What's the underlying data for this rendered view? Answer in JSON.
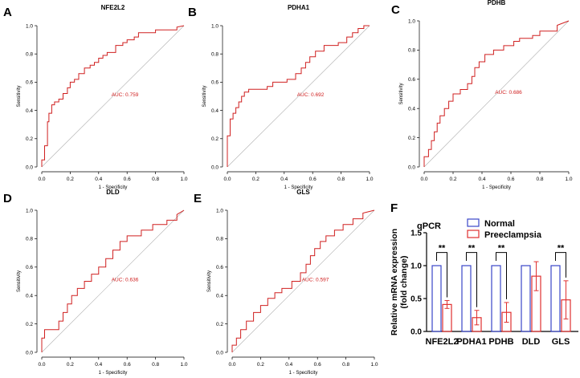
{
  "figure": {
    "roc_panels": [
      {
        "panel": "A",
        "gene": "NFE2L2",
        "auc_label": "AUC: 0.759"
      },
      {
        "panel": "B",
        "gene": "PDHA1",
        "auc_label": "AUC: 0.692"
      },
      {
        "panel": "C",
        "gene": "PDHB",
        "auc_label": "AUC: 0.686"
      },
      {
        "panel": "D",
        "gene": "DLD",
        "auc_label": "AUC: 0.636"
      },
      {
        "panel": "E",
        "gene": "GLS",
        "auc_label": "AUC: 0.597"
      }
    ],
    "bar_panel": {
      "panel": "F",
      "title": "qPCR"
    }
  },
  "colors": {
    "roc_curve": "#d02020",
    "diagonal": "#b0b0b0",
    "normal": "#3a45c8",
    "preeclampsia": "#e03030"
  },
  "chart_data": [
    {
      "type": "line",
      "panel": "A",
      "title": "NFE2L2",
      "xlabel": "1 - Specificity",
      "ylabel": "Sensitivity",
      "xlim": [
        0,
        1
      ],
      "ylim": [
        0,
        1
      ],
      "x_ticks": [
        "0.0",
        "0.2",
        "0.4",
        "0.6",
        "0.8",
        "1.0"
      ],
      "y_ticks": [
        "0.0",
        "0.2",
        "0.4",
        "0.6",
        "0.8",
        "1.0"
      ],
      "annotation": "AUC: 0.759",
      "series": [
        {
          "name": "ROC",
          "x": [
            0,
            0,
            0.02,
            0.02,
            0.04,
            0.04,
            0.05,
            0.05,
            0.07,
            0.07,
            0.09,
            0.09,
            0.12,
            0.12,
            0.15,
            0.15,
            0.18,
            0.18,
            0.2,
            0.2,
            0.23,
            0.23,
            0.26,
            0.26,
            0.3,
            0.3,
            0.34,
            0.34,
            0.37,
            0.37,
            0.4,
            0.4,
            0.43,
            0.43,
            0.46,
            0.46,
            0.52,
            0.52,
            0.57,
            0.57,
            0.6,
            0.6,
            0.65,
            0.65,
            0.68,
            0.68,
            0.8,
            0.8,
            0.95,
            0.95,
            1.0
          ],
          "y": [
            0,
            0.05,
            0.05,
            0.15,
            0.15,
            0.32,
            0.32,
            0.38,
            0.38,
            0.44,
            0.44,
            0.46,
            0.46,
            0.48,
            0.48,
            0.52,
            0.52,
            0.56,
            0.56,
            0.6,
            0.6,
            0.62,
            0.62,
            0.66,
            0.66,
            0.7,
            0.7,
            0.72,
            0.72,
            0.74,
            0.74,
            0.77,
            0.77,
            0.79,
            0.79,
            0.81,
            0.81,
            0.86,
            0.86,
            0.88,
            0.88,
            0.9,
            0.9,
            0.92,
            0.92,
            0.95,
            0.95,
            0.97,
            0.97,
            0.99,
            1.0
          ]
        },
        {
          "name": "Reference",
          "x": [
            0,
            1
          ],
          "y": [
            0,
            1
          ]
        }
      ]
    },
    {
      "type": "line",
      "panel": "B",
      "title": "PDHA1",
      "xlabel": "1 - Specificity",
      "ylabel": "Sensitivity",
      "xlim": [
        0,
        1
      ],
      "ylim": [
        0,
        1
      ],
      "x_ticks": [
        "0.0",
        "0.2",
        "0.4",
        "0.6",
        "0.8",
        "1.0"
      ],
      "y_ticks": [
        "0.0",
        "0.2",
        "0.4",
        "0.6",
        "0.8",
        "1.0"
      ],
      "annotation": "AUC: 0.692",
      "series": [
        {
          "name": "ROC",
          "x": [
            0,
            0,
            0.02,
            0.02,
            0.04,
            0.04,
            0.06,
            0.06,
            0.08,
            0.08,
            0.1,
            0.1,
            0.12,
            0.12,
            0.15,
            0.15,
            0.28,
            0.28,
            0.32,
            0.32,
            0.42,
            0.42,
            0.48,
            0.48,
            0.52,
            0.52,
            0.55,
            0.55,
            0.58,
            0.58,
            0.62,
            0.62,
            0.68,
            0.68,
            0.78,
            0.78,
            0.84,
            0.84,
            0.88,
            0.88,
            0.92,
            0.92,
            0.96,
            0.96,
            1.0
          ],
          "y": [
            0,
            0.22,
            0.22,
            0.34,
            0.34,
            0.38,
            0.38,
            0.42,
            0.42,
            0.46,
            0.46,
            0.5,
            0.5,
            0.53,
            0.53,
            0.55,
            0.55,
            0.57,
            0.57,
            0.6,
            0.6,
            0.62,
            0.62,
            0.66,
            0.66,
            0.7,
            0.7,
            0.74,
            0.74,
            0.78,
            0.78,
            0.82,
            0.82,
            0.86,
            0.86,
            0.88,
            0.88,
            0.92,
            0.92,
            0.95,
            0.95,
            0.98,
            0.98,
            1.0,
            1.0
          ]
        },
        {
          "name": "Reference",
          "x": [
            0,
            1
          ],
          "y": [
            0,
            1
          ]
        }
      ]
    },
    {
      "type": "line",
      "panel": "C",
      "title": "PDHB",
      "xlabel": "1 - Specificity",
      "ylabel": "Sensitivity",
      "xlim": [
        0,
        1
      ],
      "ylim": [
        0,
        1
      ],
      "x_ticks": [
        "0.0",
        "0.2",
        "0.4",
        "0.6",
        "0.8",
        "1.0"
      ],
      "y_ticks": [
        "0.0",
        "0.2",
        "0.4",
        "0.6",
        "0.8",
        "1.0"
      ],
      "annotation": "AUC: 0.686",
      "series": [
        {
          "name": "ROC",
          "x": [
            0,
            0,
            0.03,
            0.03,
            0.05,
            0.05,
            0.07,
            0.07,
            0.09,
            0.09,
            0.11,
            0.11,
            0.14,
            0.14,
            0.17,
            0.17,
            0.2,
            0.2,
            0.25,
            0.25,
            0.3,
            0.3,
            0.33,
            0.33,
            0.35,
            0.35,
            0.38,
            0.38,
            0.42,
            0.42,
            0.48,
            0.48,
            0.55,
            0.55,
            0.62,
            0.62,
            0.66,
            0.66,
            0.75,
            0.75,
            0.8,
            0.8,
            0.92,
            0.92,
            1.0
          ],
          "y": [
            0,
            0.07,
            0.07,
            0.12,
            0.12,
            0.18,
            0.18,
            0.24,
            0.24,
            0.3,
            0.3,
            0.35,
            0.35,
            0.4,
            0.4,
            0.45,
            0.45,
            0.5,
            0.5,
            0.53,
            0.53,
            0.57,
            0.57,
            0.62,
            0.62,
            0.68,
            0.68,
            0.72,
            0.72,
            0.77,
            0.77,
            0.8,
            0.8,
            0.83,
            0.83,
            0.86,
            0.86,
            0.88,
            0.88,
            0.9,
            0.9,
            0.93,
            0.93,
            0.97,
            1.0
          ]
        },
        {
          "name": "Reference",
          "x": [
            0,
            1
          ],
          "y": [
            0,
            1
          ]
        }
      ]
    },
    {
      "type": "line",
      "panel": "D",
      "title": "DLD",
      "xlabel": "1 - Specificity",
      "ylabel": "Sensitivity",
      "xlim": [
        0,
        1
      ],
      "ylim": [
        0,
        1
      ],
      "x_ticks": [
        "0.0",
        "0.2",
        "0.4",
        "0.6",
        "0.8",
        "1.0"
      ],
      "y_ticks": [
        "0.0",
        "0.2",
        "0.4",
        "0.6",
        "0.8",
        "1.0"
      ],
      "annotation": "AUC: 0.636",
      "series": [
        {
          "name": "ROC",
          "x": [
            0,
            0,
            0.02,
            0.02,
            0.12,
            0.12,
            0.15,
            0.15,
            0.18,
            0.18,
            0.21,
            0.21,
            0.25,
            0.25,
            0.3,
            0.3,
            0.35,
            0.35,
            0.4,
            0.4,
            0.45,
            0.45,
            0.5,
            0.5,
            0.55,
            0.55,
            0.6,
            0.6,
            0.7,
            0.7,
            0.78,
            0.78,
            0.88,
            0.88,
            0.95,
            0.95,
            1.0
          ],
          "y": [
            0,
            0.1,
            0.1,
            0.16,
            0.16,
            0.22,
            0.22,
            0.28,
            0.28,
            0.34,
            0.34,
            0.4,
            0.4,
            0.45,
            0.45,
            0.5,
            0.5,
            0.55,
            0.55,
            0.6,
            0.6,
            0.66,
            0.66,
            0.72,
            0.72,
            0.78,
            0.78,
            0.82,
            0.82,
            0.86,
            0.86,
            0.9,
            0.9,
            0.93,
            0.93,
            0.97,
            1.0
          ]
        },
        {
          "name": "Reference",
          "x": [
            0,
            1
          ],
          "y": [
            0,
            1
          ]
        }
      ]
    },
    {
      "type": "line",
      "panel": "E",
      "title": "GLS",
      "xlabel": "1 - Specificity",
      "ylabel": "Sensitivity",
      "xlim": [
        0,
        1
      ],
      "ylim": [
        0,
        1
      ],
      "x_ticks": [
        "0.0",
        "0.2",
        "0.4",
        "0.6",
        "0.8",
        "1.0"
      ],
      "y_ticks": [
        "0.0",
        "0.2",
        "0.4",
        "0.6",
        "0.8",
        "1.0"
      ],
      "annotation": "AUC: 0.597",
      "series": [
        {
          "name": "ROC",
          "x": [
            0,
            0,
            0.03,
            0.03,
            0.06,
            0.06,
            0.1,
            0.1,
            0.15,
            0.15,
            0.2,
            0.2,
            0.25,
            0.25,
            0.3,
            0.3,
            0.35,
            0.35,
            0.42,
            0.42,
            0.48,
            0.48,
            0.52,
            0.52,
            0.55,
            0.55,
            0.58,
            0.58,
            0.62,
            0.62,
            0.66,
            0.66,
            0.72,
            0.72,
            0.78,
            0.78,
            0.85,
            0.85,
            0.92,
            0.92,
            1.0
          ],
          "y": [
            0,
            0.05,
            0.05,
            0.1,
            0.1,
            0.16,
            0.16,
            0.22,
            0.22,
            0.28,
            0.28,
            0.33,
            0.33,
            0.38,
            0.38,
            0.42,
            0.42,
            0.45,
            0.45,
            0.5,
            0.5,
            0.56,
            0.56,
            0.62,
            0.62,
            0.68,
            0.68,
            0.73,
            0.73,
            0.78,
            0.78,
            0.82,
            0.82,
            0.86,
            0.86,
            0.9,
            0.9,
            0.94,
            0.94,
            0.98,
            1.0
          ]
        },
        {
          "name": "Reference",
          "x": [
            0,
            1
          ],
          "y": [
            0,
            1
          ]
        }
      ]
    },
    {
      "type": "bar",
      "panel": "F",
      "title": "qPCR",
      "categories": [
        "NFE2L2",
        "PDHA1",
        "PDHB",
        "DLD",
        "GLS"
      ],
      "ylabel": "Relative mRNA expression (fold change)",
      "ylabel_lines": [
        "Relative mRNA expression",
        "(fold change)"
      ],
      "ylim": [
        0,
        1.5
      ],
      "y_ticks": [
        "0.0",
        "0.5",
        "1.0",
        "1.5"
      ],
      "legend": "top-right",
      "series": [
        {
          "name": "Normal",
          "values": [
            1.0,
            1.0,
            1.0,
            1.0,
            1.0
          ],
          "errors": [
            0,
            0,
            0,
            0,
            0
          ]
        },
        {
          "name": "Preeclampsia",
          "values": [
            0.41,
            0.21,
            0.29,
            0.84,
            0.48
          ],
          "errors": [
            0.06,
            0.11,
            0.15,
            0.22,
            0.29
          ]
        }
      ],
      "significance": [
        "**",
        "**",
        "**",
        "",
        "**"
      ]
    }
  ]
}
